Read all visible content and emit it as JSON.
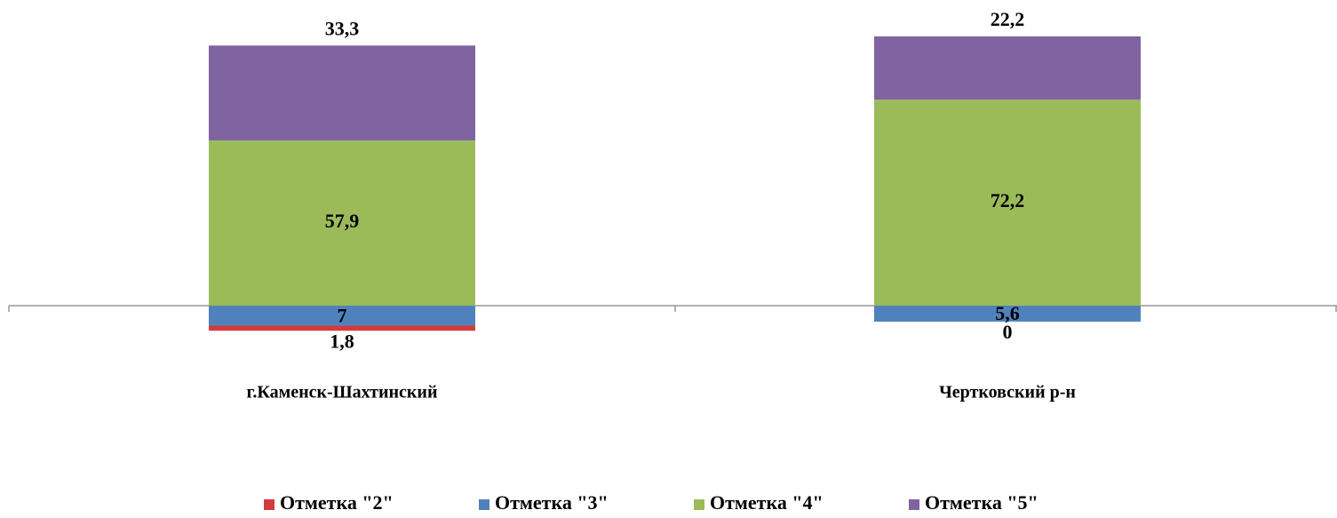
{
  "chart_data": {
    "type": "bar",
    "stacked": true,
    "categories": [
      "г.Каменск-Шахтинский",
      "Чертковский р-н"
    ],
    "series": [
      {
        "name": "Отметка \"2\"",
        "color": "#d23c3c",
        "values": [
          1.8,
          0
        ],
        "value_labels": [
          "1,8",
          "0"
        ]
      },
      {
        "name": "Отметка \"3\"",
        "color": "#4f81bd",
        "values": [
          7,
          5.6
        ],
        "value_labels": [
          "7",
          "5,6"
        ]
      },
      {
        "name": "Отметка \"4\"",
        "color": "#9bbb59",
        "values": [
          57.9,
          72.2
        ],
        "value_labels": [
          "57,9",
          "72,2"
        ]
      },
      {
        "name": "Отметка \"5\"",
        "color": "#8064a2",
        "values": [
          33.3,
          22.2
        ],
        "value_labels": [
          "33,3",
          "22,2"
        ]
      }
    ],
    "legend": "bottom"
  }
}
